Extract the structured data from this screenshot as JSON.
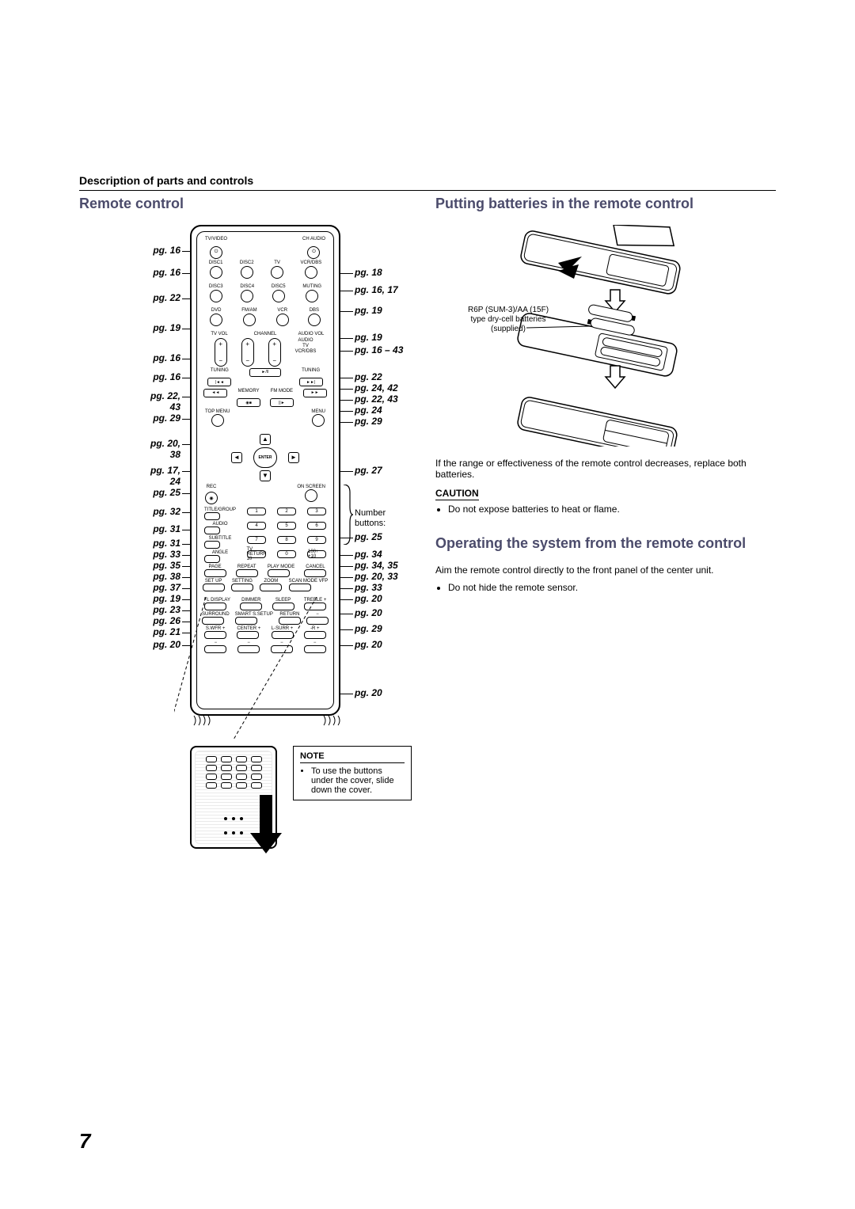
{
  "header": "Description of parts and controls",
  "page_number": "7",
  "left": {
    "title": "Remote control",
    "note_title": "NOTE",
    "note_text": "To use the buttons under the cover, slide down the cover.",
    "callouts_left": [
      {
        "t": 26,
        "text": "pg. 16"
      },
      {
        "t": 54,
        "text": "pg. 16"
      },
      {
        "t": 86,
        "text": "pg. 22"
      },
      {
        "t": 124,
        "text": "pg. 19"
      },
      {
        "t": 162,
        "text": "pg. 16"
      },
      {
        "t": 186,
        "text": "pg. 16"
      },
      {
        "t": 210,
        "text": "pg. 22, 43"
      },
      {
        "t": 238,
        "text": "pg. 29"
      },
      {
        "t": 270,
        "text": "pg. 20, 38"
      },
      {
        "t": 304,
        "text": "pg. 17, 24"
      },
      {
        "t": 332,
        "text": "pg. 25"
      },
      {
        "t": 356,
        "text": "pg. 32"
      },
      {
        "t": 378,
        "text": "pg. 31"
      },
      {
        "t": 396,
        "text": "pg. 31"
      },
      {
        "t": 410,
        "text": "pg. 33"
      },
      {
        "t": 424,
        "text": "pg. 35"
      },
      {
        "t": 438,
        "text": "pg. 38"
      },
      {
        "t": 452,
        "text": "pg. 37"
      },
      {
        "t": 466,
        "text": "pg. 19"
      },
      {
        "t": 480,
        "text": "pg. 23"
      },
      {
        "t": 494,
        "text": "pg. 26"
      },
      {
        "t": 508,
        "text": "pg. 21"
      },
      {
        "t": 524,
        "text": "pg. 20"
      }
    ],
    "callouts_right": [
      {
        "t": 54,
        "text": "pg. 18"
      },
      {
        "t": 76,
        "text": "pg. 16, 17"
      },
      {
        "t": 102,
        "text": "pg. 19"
      },
      {
        "t": 136,
        "text": "pg. 19"
      },
      {
        "t": 152,
        "text": "pg. 16 – 43"
      },
      {
        "t": 186,
        "text": "pg. 22"
      },
      {
        "t": 200,
        "text": "pg. 24, 42"
      },
      {
        "t": 214,
        "text": "pg. 22, 43"
      },
      {
        "t": 228,
        "text": "pg. 24"
      },
      {
        "t": 242,
        "text": "pg. 29"
      },
      {
        "t": 304,
        "text": "pg. 27"
      },
      {
        "t": 358,
        "text": "Number buttons:",
        "plain": true
      },
      {
        "t": 388,
        "text": "pg. 25"
      },
      {
        "t": 410,
        "text": "pg. 34"
      },
      {
        "t": 424,
        "text": "pg. 34, 35"
      },
      {
        "t": 438,
        "text": "pg. 20, 33"
      },
      {
        "t": 452,
        "text": "pg. 33"
      },
      {
        "t": 466,
        "text": "pg. 20"
      },
      {
        "t": 484,
        "text": "pg. 20"
      },
      {
        "t": 504,
        "text": "pg. 29"
      },
      {
        "t": 524,
        "text": "pg. 20"
      },
      {
        "t": 585,
        "text": "pg. 20"
      }
    ],
    "remote_labels": {
      "row0": [
        "TV/VIDEO",
        "",
        "CH AUDIO"
      ],
      "row1": [
        "DISC1",
        "DISC2",
        "TV",
        "VCR/DBS"
      ],
      "row2": [
        "DISC3",
        "DISC4",
        "DISC5",
        "MUTING"
      ],
      "row3": [
        "DVD",
        "FM/AM",
        "VCR",
        "DBS"
      ],
      "row4": [
        "TV VOL",
        "CHANNEL",
        "AUDIO VOL"
      ],
      "side_labels": [
        "AUDIO",
        "TV",
        "VCR/DBS"
      ],
      "tuning": "TUNING",
      "play": "►/II",
      "memory": "MEMORY",
      "fmmode": "FM MODE",
      "topmenu": "TOP MENU",
      "menu": "MENU",
      "enter": "ENTER",
      "rec": "REC",
      "onscreen": "ON SCREEN",
      "grp_rows": [
        [
          "TITLE/GROUP",
          "1",
          "2",
          "3"
        ],
        [
          "AUDIO",
          "4",
          "5",
          "6"
        ],
        [
          "SUBTITLE",
          "7",
          "8",
          "9"
        ],
        [
          "ANGLE",
          "TV RETURN 10",
          "0",
          "100+ +10"
        ]
      ],
      "ctrl_rows": [
        [
          "PAGE",
          "REPEAT",
          "PLAY MODE",
          "CANCEL"
        ],
        [
          "SET UP",
          "SETTING",
          "ZOOM",
          "SCAN MODE VFP"
        ]
      ],
      "cover_rows": [
        [
          "FL DISPLAY",
          "DIMMER",
          "SLEEP",
          "TREBLE +"
        ],
        [
          "SURROUND",
          "SMART S.SETUP",
          "RETURN",
          "−"
        ],
        [
          "S.WFR +",
          "CENTER +",
          "L-SURR +",
          "-R +"
        ],
        [
          "−",
          "−",
          "−",
          "−"
        ]
      ]
    }
  },
  "right": {
    "title1": "Putting batteries in the remote control",
    "battery_label": "R6P (SUM-3)/AA (15F) type dry-cell batteries (supplied)",
    "para1": "If the range or effectiveness of the remote control decreases, replace both batteries.",
    "caution_hd": "CAUTION",
    "caution_text": "Do not expose batteries to heat or flame.",
    "title2": "Operating the system from the remote control",
    "para2": "Aim the remote control directly to the front panel of the center unit.",
    "bullet": "Do not hide the remote sensor."
  }
}
